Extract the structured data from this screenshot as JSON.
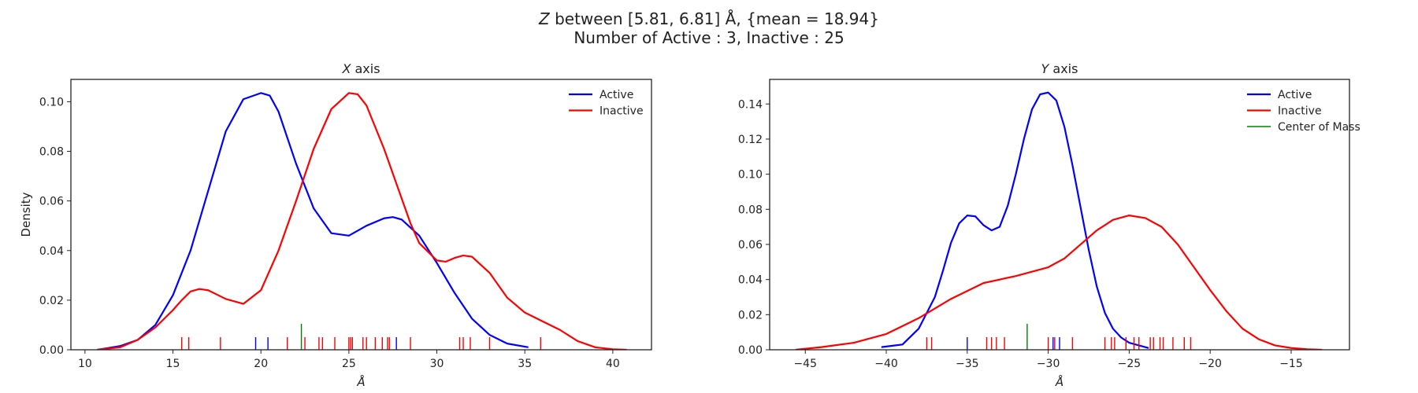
{
  "figure": {
    "title_line1": "Z between [5.81, 6.81] Å, {mean = 18.94}",
    "title_line2": "Number of Active : 3, Inactive : 25"
  },
  "colors": {
    "active": "#0000ff",
    "inactive": "#ff0000",
    "center_of_mass": "#008000"
  },
  "chart_data": [
    {
      "type": "line",
      "title": "X axis",
      "xlabel": "Å",
      "ylabel": "Density",
      "xlim": [
        9.2,
        42.2
      ],
      "ylim": [
        0,
        0.109
      ],
      "xticks": [
        10,
        15,
        20,
        25,
        30,
        35,
        40
      ],
      "yticks": [
        0.0,
        0.02,
        0.04,
        0.06,
        0.08,
        0.1
      ],
      "ytick_labels": [
        "0.00",
        "0.02",
        "0.04",
        "0.06",
        "0.08",
        "0.10"
      ],
      "legend": [
        "Active",
        "Inactive"
      ],
      "legend_position": "top-right",
      "series": [
        {
          "name": "Active",
          "color_key": "active",
          "x": [
            10.7,
            12,
            13,
            14,
            15,
            16,
            17,
            18,
            19,
            20,
            20.5,
            21,
            22,
            23,
            24,
            25,
            26,
            27,
            27.5,
            28,
            29,
            30,
            31,
            32,
            33,
            34,
            35.2
          ],
          "y": [
            0.0,
            0.0015,
            0.004,
            0.01,
            0.022,
            0.04,
            0.064,
            0.088,
            0.101,
            0.1035,
            0.1025,
            0.096,
            0.075,
            0.057,
            0.047,
            0.046,
            0.05,
            0.053,
            0.0535,
            0.0525,
            0.046,
            0.035,
            0.023,
            0.0125,
            0.006,
            0.0025,
            0.001
          ]
        },
        {
          "name": "Inactive",
          "color_key": "inactive",
          "x": [
            10.7,
            12,
            13,
            14,
            15,
            15.5,
            16,
            16.5,
            17,
            18,
            19,
            20,
            21,
            22,
            23,
            24,
            25,
            25.5,
            26,
            27,
            28,
            28.5,
            29,
            30,
            30.5,
            31,
            31.5,
            32,
            33,
            34,
            35,
            36,
            37,
            38,
            39,
            40,
            40.8
          ],
          "y": [
            0.0,
            0.001,
            0.004,
            0.009,
            0.016,
            0.02,
            0.0235,
            0.0245,
            0.024,
            0.0205,
            0.0185,
            0.024,
            0.04,
            0.06,
            0.081,
            0.097,
            0.1035,
            0.103,
            0.0985,
            0.081,
            0.061,
            0.051,
            0.043,
            0.036,
            0.0355,
            0.037,
            0.038,
            0.0375,
            0.031,
            0.021,
            0.015,
            0.0115,
            0.008,
            0.0035,
            0.001,
            0.0002,
            0.0
          ]
        }
      ],
      "rug": {
        "Inactive": [
          15.5,
          15.9,
          17.7,
          21.5,
          22.5,
          23.3,
          23.5,
          24.2,
          25.0,
          25.1,
          25.2,
          25.8,
          26.0,
          26.5,
          26.9,
          27.2,
          27.3,
          28.5,
          31.3,
          31.5,
          31.9,
          33.0,
          35.9
        ],
        "Active": [
          19.7,
          20.4,
          27.7
        ],
        "Center of Mass": [
          22.3
        ]
      }
    },
    {
      "type": "line",
      "title": "Y axis",
      "xlabel": "Å",
      "ylabel": "",
      "xlim": [
        -47.2,
        -11.4
      ],
      "ylim": [
        0,
        0.154
      ],
      "xticks": [
        -45,
        -40,
        -35,
        -30,
        -25,
        -20,
        -15
      ],
      "yticks": [
        0.0,
        0.02,
        0.04,
        0.06,
        0.08,
        0.1,
        0.12,
        0.14
      ],
      "ytick_labels": [
        "0.00",
        "0.02",
        "0.04",
        "0.06",
        "0.08",
        "0.10",
        "0.12",
        "0.14"
      ],
      "legend": [
        "Active",
        "Inactive",
        "Center of Mass"
      ],
      "legend_position": "top-right",
      "series": [
        {
          "name": "Active",
          "color_key": "active",
          "x": [
            -40.3,
            -39,
            -38,
            -37,
            -36.5,
            -36,
            -35.5,
            -35,
            -34.5,
            -34,
            -33.5,
            -33,
            -32.5,
            -32,
            -31.5,
            -31,
            -30.5,
            -30,
            -29.5,
            -29,
            -28.5,
            -28,
            -27.5,
            -27,
            -26.5,
            -26,
            -25.5,
            -25,
            -24,
            -23.8
          ],
          "y": [
            0.0015,
            0.003,
            0.012,
            0.03,
            0.045,
            0.061,
            0.072,
            0.0765,
            0.076,
            0.071,
            0.068,
            0.07,
            0.082,
            0.1,
            0.12,
            0.137,
            0.1455,
            0.1465,
            0.142,
            0.127,
            0.105,
            0.081,
            0.057,
            0.036,
            0.021,
            0.012,
            0.007,
            0.004,
            0.0015,
            0.001
          ]
        },
        {
          "name": "Inactive",
          "color_key": "inactive",
          "x": [
            -45.6,
            -44,
            -42,
            -40,
            -38,
            -36,
            -34,
            -32,
            -30,
            -29,
            -28,
            -27,
            -26,
            -25,
            -24,
            -23,
            -22,
            -21,
            -20,
            -19,
            -18,
            -17,
            -16,
            -15,
            -14,
            -13.1
          ],
          "y": [
            0.0,
            0.0015,
            0.004,
            0.009,
            0.018,
            0.029,
            0.038,
            0.042,
            0.047,
            0.052,
            0.06,
            0.068,
            0.074,
            0.0765,
            0.075,
            0.07,
            0.06,
            0.047,
            0.034,
            0.022,
            0.012,
            0.006,
            0.0025,
            0.001,
            0.0003,
            0.0
          ]
        }
      ],
      "rug": {
        "Inactive": [
          -37.5,
          -37.2,
          -33.8,
          -33.5,
          -33.2,
          -32.7,
          -30.0,
          -29.6,
          -28.5,
          -26.5,
          -26.1,
          -25.9,
          -25.2,
          -24.7,
          -24.4,
          -23.7,
          -23.5,
          -23.1,
          -22.9,
          -22.3,
          -21.6,
          -21.2
        ],
        "Active": [
          -35.0,
          -29.7,
          -29.3
        ],
        "Center of Mass": [
          -31.3
        ]
      }
    }
  ]
}
